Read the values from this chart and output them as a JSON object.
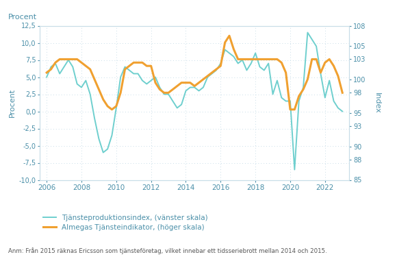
{
  "title_left": "Procent",
  "ylabel_left": "Procent",
  "ylabel_right": "Index",
  "ylim_left": [
    -10.0,
    12.5
  ],
  "ylim_right": [
    85,
    108
  ],
  "yticks_left": [
    -10.0,
    -7.5,
    -5.0,
    -2.5,
    0.0,
    2.5,
    5.0,
    7.5,
    10.0,
    12.5
  ],
  "yticks_right": [
    85,
    88,
    90,
    93,
    95,
    98,
    100,
    103,
    105,
    108
  ],
  "annotation": "Anm: Från 2015 räknas Ericsson som tjänsteföretag, vilket innebar ett tidsseriebrott mellan 2014 och 2015.",
  "legend_tjanste": "Tjänsteproduktionsindex, (vänster skala)",
  "legend_almega": "Almegas Tjänsteindikator, (höger skala)",
  "color_tjanste": "#6ecfce",
  "color_almega": "#f0a030",
  "background_color": "#ffffff",
  "grid_color": "#c8dde8",
  "axis_color": "#4a8fa8",
  "text_color": "#4a8fa8",
  "annotation_color": "#555555",
  "tjanste_x": [
    2006.0,
    2006.25,
    2006.5,
    2006.75,
    2007.0,
    2007.25,
    2007.5,
    2007.75,
    2008.0,
    2008.25,
    2008.5,
    2008.75,
    2009.0,
    2009.25,
    2009.5,
    2009.75,
    2010.0,
    2010.25,
    2010.5,
    2010.75,
    2011.0,
    2011.25,
    2011.5,
    2011.75,
    2012.0,
    2012.25,
    2012.5,
    2012.75,
    2013.0,
    2013.25,
    2013.5,
    2013.75,
    2014.0,
    2014.25,
    2014.5,
    2014.75,
    2015.0,
    2015.25,
    2015.5,
    2015.75,
    2016.0,
    2016.25,
    2016.5,
    2016.75,
    2017.0,
    2017.25,
    2017.5,
    2017.75,
    2018.0,
    2018.25,
    2018.5,
    2018.75,
    2019.0,
    2019.25,
    2019.5,
    2019.75,
    2020.0,
    2020.25,
    2020.5,
    2020.75,
    2021.0,
    2021.25,
    2021.5,
    2021.75,
    2022.0,
    2022.25,
    2022.5,
    2022.75,
    2023.0
  ],
  "tjanste_y": [
    5.0,
    6.5,
    7.0,
    5.5,
    6.5,
    7.5,
    6.5,
    4.0,
    3.5,
    4.5,
    2.5,
    -1.0,
    -4.0,
    -6.0,
    -5.5,
    -3.5,
    0.5,
    5.0,
    6.5,
    6.0,
    5.5,
    5.5,
    4.5,
    4.0,
    4.5,
    5.0,
    3.5,
    2.5,
    2.5,
    1.5,
    0.5,
    1.0,
    3.0,
    3.5,
    3.5,
    3.0,
    3.5,
    5.0,
    5.5,
    6.0,
    7.0,
    9.0,
    8.5,
    8.0,
    7.0,
    7.5,
    6.0,
    7.0,
    8.5,
    6.5,
    6.0,
    7.0,
    2.5,
    4.5,
    2.0,
    1.5,
    1.5,
    -8.5,
    1.5,
    3.5,
    11.5,
    10.5,
    9.5,
    5.5,
    2.0,
    4.5,
    1.5,
    0.5,
    0.0
  ],
  "almega_x": [
    2006.0,
    2006.25,
    2006.5,
    2006.75,
    2007.0,
    2007.25,
    2007.5,
    2007.75,
    2008.0,
    2008.25,
    2008.5,
    2008.75,
    2009.0,
    2009.25,
    2009.5,
    2009.75,
    2010.0,
    2010.25,
    2010.5,
    2010.75,
    2011.0,
    2011.25,
    2011.5,
    2011.75,
    2012.0,
    2012.25,
    2012.5,
    2012.75,
    2013.0,
    2013.25,
    2013.5,
    2013.75,
    2014.0,
    2014.25,
    2014.5,
    2014.75,
    2015.0,
    2015.25,
    2015.5,
    2015.75,
    2016.0,
    2016.25,
    2016.5,
    2016.75,
    2017.0,
    2017.25,
    2017.5,
    2017.75,
    2018.0,
    2018.25,
    2018.5,
    2018.75,
    2019.0,
    2019.25,
    2019.5,
    2019.75,
    2020.0,
    2020.25,
    2020.5,
    2020.75,
    2021.0,
    2021.25,
    2021.5,
    2021.75,
    2022.0,
    2022.25,
    2022.5,
    2022.75,
    2023.0
  ],
  "almega_y": [
    101.0,
    101.5,
    102.5,
    103.0,
    103.0,
    103.0,
    103.0,
    103.0,
    102.5,
    102.0,
    101.5,
    100.0,
    98.5,
    97.0,
    96.0,
    95.5,
    96.0,
    98.0,
    101.5,
    102.0,
    102.5,
    102.5,
    102.5,
    102.0,
    102.0,
    99.5,
    98.5,
    98.0,
    98.0,
    98.5,
    99.0,
    99.5,
    99.5,
    99.5,
    99.0,
    99.5,
    100.0,
    100.5,
    101.0,
    101.5,
    102.0,
    105.5,
    106.5,
    104.5,
    103.0,
    103.0,
    103.0,
    103.0,
    103.0,
    103.0,
    103.0,
    103.0,
    103.0,
    103.0,
    102.5,
    101.0,
    95.5,
    95.5,
    97.5,
    98.5,
    100.0,
    103.0,
    103.0,
    101.0,
    102.5,
    103.0,
    102.0,
    100.5,
    98.0
  ],
  "xtick_years": [
    2006,
    2008,
    2010,
    2012,
    2014,
    2016,
    2018,
    2020,
    2022
  ],
  "xlim": [
    2005.6,
    2023.4
  ]
}
